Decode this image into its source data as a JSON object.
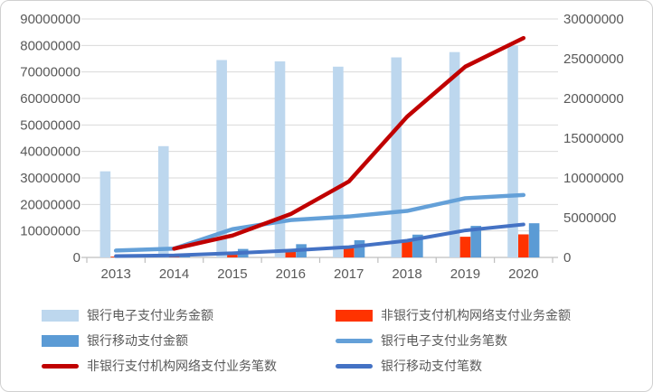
{
  "chart_data": {
    "type": "bar+line combo",
    "categories": [
      "2013",
      "2014",
      "2015",
      "2016",
      "2017",
      "2018",
      "2019",
      "2020"
    ],
    "left_axis": {
      "min": 0,
      "max": 90000000,
      "step": 10000000,
      "tick_labels": [
        "90000000",
        "80000000",
        "70000000",
        "60000000",
        "50000000",
        "40000000",
        "30000000",
        "20000000",
        "10000000",
        "0"
      ]
    },
    "right_axis": {
      "min": 0,
      "max": 30000000,
      "step": 5000000,
      "tick_labels": [
        "30000000",
        "25000000",
        "20000000",
        "15000000",
        "10000000",
        "5000000",
        "0"
      ]
    },
    "grid": true,
    "legend_position": "bottom",
    "series": [
      {
        "name": "银行电子支付业务金额",
        "type": "bar",
        "axis": "left",
        "color": "#BDD7EE",
        "values": [
          32500000,
          42000000,
          74500000,
          74000000,
          72000000,
          75500000,
          77500000,
          80000000
        ],
        "legend_col": 0,
        "legend_row": 0
      },
      {
        "name": "非银行支付机构网络支付业务金额",
        "type": "bar",
        "axis": "left",
        "color": "#FF3300",
        "values": [
          300000,
          500000,
          1500000,
          2900000,
          4200000,
          6200000,
          7800000,
          8700000
        ],
        "legend_col": 1,
        "legend_row": 0
      },
      {
        "name": "银行移动支付金额",
        "type": "bar",
        "axis": "left",
        "color": "#5B9BD5",
        "values": [
          300000,
          700000,
          3200000,
          5000000,
          6500000,
          8600000,
          11900000,
          12900000
        ],
        "legend_col": 0,
        "legend_row": 1
      },
      {
        "name": "银行电子支付业务笔数",
        "type": "line",
        "axis": "right",
        "color": "#64A0D8",
        "values": [
          860000,
          1110000,
          3550000,
          4700000,
          5150000,
          5850000,
          7450000,
          7850000
        ],
        "legend_col": 1,
        "legend_row": 1
      },
      {
        "name": "非银行支付机构网络支付业务笔数",
        "type": "line",
        "axis": "right",
        "color": "#C00000",
        "values": [
          null,
          1100000,
          2750000,
          5450000,
          9550000,
          17700000,
          24000000,
          27600000
        ],
        "legend_col": 0,
        "legend_row": 2
      },
      {
        "name": "银行移动支付笔数",
        "type": "line",
        "axis": "right",
        "color": "#4472C4",
        "values": [
          170000,
          260000,
          530000,
          860000,
          1300000,
          2100000,
          3400000,
          4150000
        ],
        "legend_col": 1,
        "legend_row": 2
      }
    ],
    "colors": {
      "gridline": "#D9D9D9",
      "axis_line": "#BFBFBF",
      "tick_text": "#595959"
    }
  }
}
